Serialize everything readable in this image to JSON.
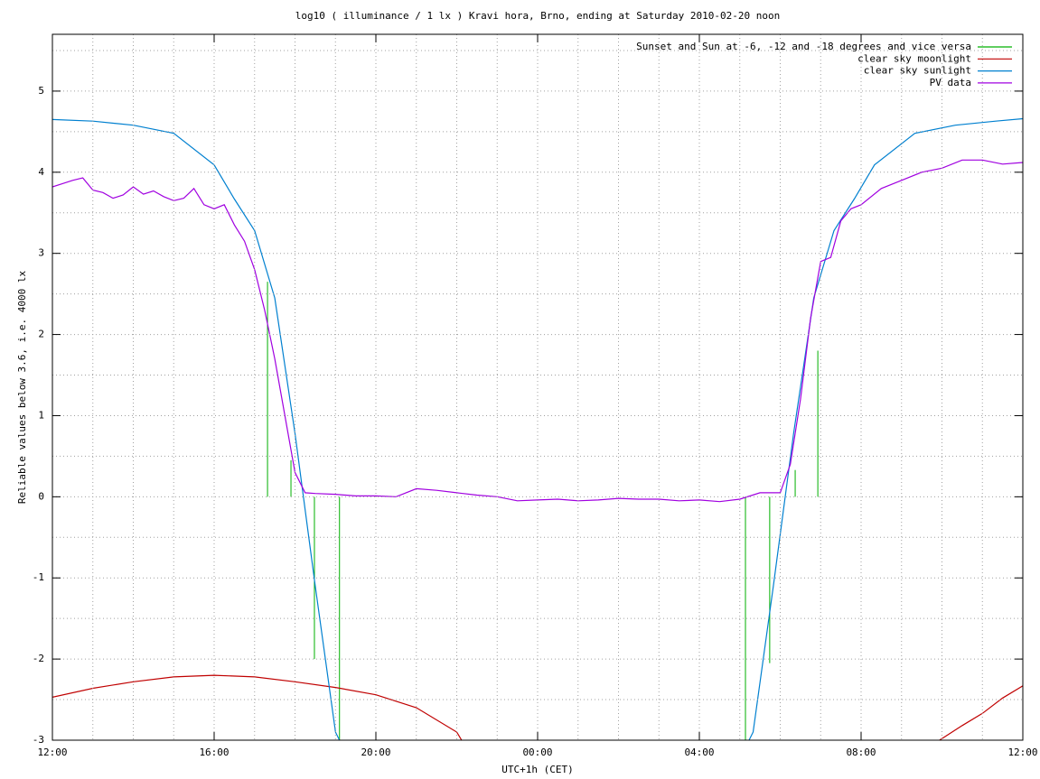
{
  "chart_data": {
    "type": "line",
    "title": "log10 ( illuminance / 1 lx ) Kravi hora, Brno, ending at Saturday 2010-02-20 noon",
    "x_label": "UTC+1h (CET)",
    "y_label": "Reliable values below 3.6, i.e. 4000 lx",
    "xlim": [
      0,
      24
    ],
    "ylim": [
      -3,
      5.7
    ],
    "xticks": [
      {
        "value": 0,
        "label": "12:00"
      },
      {
        "value": 4,
        "label": "16:00"
      },
      {
        "value": 8,
        "label": "20:00"
      },
      {
        "value": 12,
        "label": "00:00"
      },
      {
        "value": 16,
        "label": "04:00"
      },
      {
        "value": 20,
        "label": "08:00"
      },
      {
        "value": 24,
        "label": "12:00"
      }
    ],
    "yticks": [
      -3,
      -2,
      -1,
      0,
      1,
      2,
      3,
      4,
      5
    ],
    "mxtics": 4,
    "mytics": 2,
    "grid": true,
    "legend": "top-right",
    "series": [
      {
        "name": "Sunset and Sun at -6, -12 and -18 degrees and vice versa",
        "color": "#00b000",
        "style": "impulses",
        "x": [
          5.32,
          5.9,
          6.48,
          7.1,
          17.14,
          17.74,
          18.37,
          18.93
        ],
        "values": [
          2.65,
          0.45,
          -2.0,
          -3,
          -3,
          -2.05,
          0.33,
          1.8
        ]
      },
      {
        "name": "clear sky moonlight",
        "color": "#c00000",
        "style": "line",
        "x": [
          0,
          1,
          2,
          3,
          4,
          5,
          6,
          7,
          8,
          9,
          10,
          10.12,
          15,
          21.94,
          22.5,
          23,
          23.5,
          24
        ],
        "values": [
          -2.47,
          -2.36,
          -2.28,
          -2.22,
          -2.2,
          -2.22,
          -2.28,
          -2.35,
          -2.44,
          -2.6,
          -2.9,
          -3,
          null,
          -3,
          -2.82,
          -2.67,
          -2.48,
          -2.33
        ]
      },
      {
        "name": "clear sky sunlight",
        "color": "#0080d0",
        "style": "line",
        "x": [
          0,
          1,
          2,
          3,
          4,
          4.5,
          5,
          5.5,
          6,
          6.5,
          7,
          7.1,
          12,
          17.23,
          17.33,
          17.83,
          18.33,
          18.83,
          19.33,
          19.83,
          20.33,
          21.33,
          22.33,
          23.33,
          24
        ],
        "values": [
          4.65,
          4.63,
          4.58,
          4.48,
          4.09,
          3.67,
          3.28,
          2.45,
          0.78,
          -1.1,
          -2.9,
          -3,
          null,
          -3,
          -2.9,
          -1.1,
          0.78,
          2.45,
          3.28,
          3.67,
          4.09,
          4.48,
          4.58,
          4.63,
          4.66
        ]
      },
      {
        "name": "PV data",
        "color": "#a000e0",
        "style": "line",
        "x": [
          0,
          0.25,
          0.5,
          0.75,
          1,
          1.25,
          1.5,
          1.75,
          2,
          2.25,
          2.5,
          2.75,
          3,
          3.25,
          3.5,
          3.75,
          4,
          4.25,
          4.5,
          4.75,
          5,
          5.25,
          5.5,
          5.75,
          6,
          6.25,
          6.5,
          7,
          7.5,
          8,
          8.5,
          9,
          9.5,
          10,
          10.5,
          11,
          11.5,
          12,
          12.5,
          13,
          13.5,
          14,
          14.5,
          15,
          15.5,
          16,
          16.5,
          17,
          17.5,
          18,
          18.25,
          18.5,
          18.75,
          19,
          19.25,
          19.5,
          19.75,
          20,
          20.5,
          21,
          21.5,
          22,
          22.5,
          23,
          23.5,
          24
        ],
        "values": [
          3.82,
          3.86,
          3.9,
          3.93,
          3.78,
          3.75,
          3.68,
          3.72,
          3.82,
          3.73,
          3.77,
          3.7,
          3.65,
          3.68,
          3.8,
          3.6,
          3.55,
          3.6,
          3.35,
          3.15,
          2.8,
          2.3,
          1.7,
          1.0,
          0.3,
          0.05,
          0.04,
          0.03,
          0.01,
          0.01,
          0.0,
          0.1,
          0.08,
          0.05,
          0.02,
          0.0,
          -0.05,
          -0.04,
          -0.03,
          -0.05,
          -0.04,
          -0.02,
          -0.03,
          -0.03,
          -0.05,
          -0.04,
          -0.06,
          -0.03,
          0.05,
          0.05,
          0.4,
          1.2,
          2.2,
          2.9,
          2.95,
          3.4,
          3.55,
          3.6,
          3.8,
          3.9,
          4.0,
          4.05,
          4.15,
          4.15,
          4.1,
          4.12
        ]
      }
    ]
  }
}
